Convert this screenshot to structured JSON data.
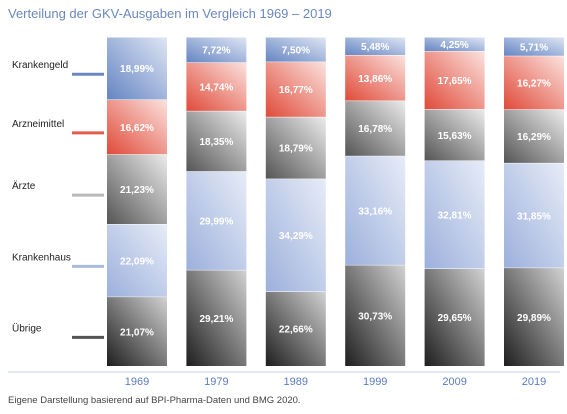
{
  "title": "Verteilung der GKV-Ausgaben im Vergleich 1969 – 2019",
  "source": "Eigene Darstellung basierend auf BPI-Pharma-Daten und BMG 2020.",
  "colors": {
    "krankengeld": "#6a88bf",
    "arzneimittel": "#e55a4a",
    "aerzte": "#b8b8b8",
    "krankenhaus": "#a9badf",
    "uebrige": "#555555",
    "axis_label": "#5a7cc0"
  },
  "chart_data": {
    "type": "bar",
    "stacked": true,
    "title": "Verteilung der GKV-Ausgaben im Vergleich 1969 – 2019",
    "categories": [
      "1969",
      "1979",
      "1989",
      "1999",
      "2009",
      "2019"
    ],
    "ylim": [
      0,
      100
    ],
    "unit": "%",
    "legend_position": "left",
    "series": [
      {
        "name": "Übrige",
        "key": "uebrige",
        "values": [
          21.07,
          29.21,
          22.66,
          30.73,
          29.65,
          29.89
        ],
        "labels": [
          "21,07%",
          "29,21%",
          "22,66%",
          "30,73%",
          "29,65%",
          "29,89%"
        ]
      },
      {
        "name": "Krankenhaus",
        "key": "krankenhaus",
        "values": [
          22.09,
          29.99,
          34.29,
          33.16,
          32.81,
          31.85
        ],
        "labels": [
          "22,09%",
          "29,99%",
          "34,29%",
          "33,16%",
          "32,81%",
          "31,85%"
        ]
      },
      {
        "name": "Ärzte",
        "key": "aerzte",
        "values": [
          21.23,
          18.35,
          18.79,
          16.78,
          15.63,
          16.29
        ],
        "labels": [
          "21,23%",
          "18,35%",
          "18,79%",
          "16,78%",
          "15,63%",
          "16,29%"
        ]
      },
      {
        "name": "Arzneimittel",
        "key": "arzneimittel",
        "values": [
          16.62,
          14.74,
          16.77,
          13.86,
          17.65,
          16.27
        ],
        "labels": [
          "16,62%",
          "14,74%",
          "16,77%",
          "13,86%",
          "17,65%",
          "16,27%"
        ]
      },
      {
        "name": "Krankengeld",
        "key": "krankengeld",
        "values": [
          18.99,
          7.72,
          7.5,
          5.48,
          4.25,
          5.71
        ],
        "labels": [
          "18,99%",
          "7,72%",
          "7,50%",
          "5,48%",
          "4,25%",
          "5,71%"
        ]
      }
    ]
  }
}
